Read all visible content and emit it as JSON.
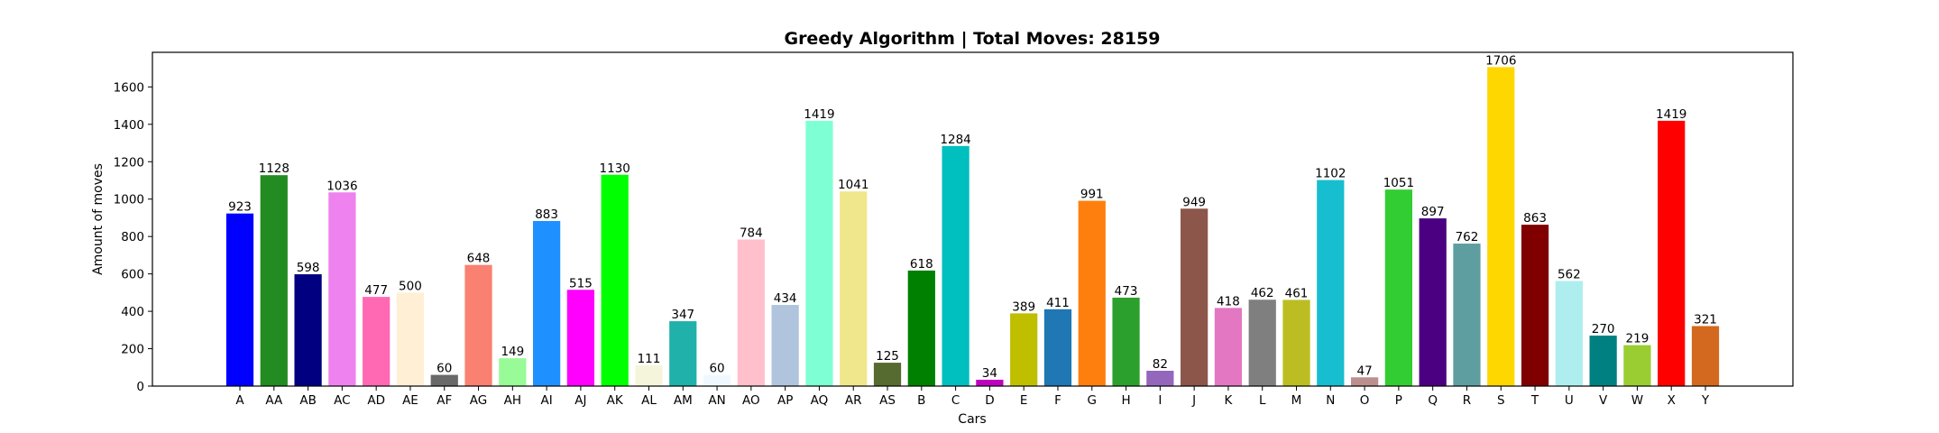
{
  "chart_data": {
    "type": "bar",
    "title": "Greedy Algorithm | Total Moves: 28159",
    "xlabel": "Cars",
    "ylabel": "Amount of moves",
    "ylim": [
      0,
      1785
    ],
    "yticks": [
      0,
      200,
      400,
      600,
      800,
      1000,
      1200,
      1400,
      1600
    ],
    "grid": false,
    "legend": "none",
    "categories": [
      "A",
      "AA",
      "AB",
      "AC",
      "AD",
      "AE",
      "AF",
      "AG",
      "AH",
      "AI",
      "AJ",
      "AK",
      "AL",
      "AM",
      "AN",
      "AO",
      "AP",
      "AQ",
      "AR",
      "AS",
      "B",
      "C",
      "D",
      "E",
      "F",
      "G",
      "H",
      "I",
      "J",
      "K",
      "L",
      "M",
      "N",
      "O",
      "P",
      "Q",
      "R",
      "S",
      "T",
      "U",
      "V",
      "W",
      "X",
      "Y"
    ],
    "values": [
      923,
      1128,
      598,
      1036,
      477,
      500,
      60,
      648,
      149,
      883,
      515,
      1130,
      111,
      347,
      60,
      784,
      434,
      1419,
      1041,
      125,
      618,
      1284,
      34,
      389,
      411,
      991,
      473,
      82,
      949,
      418,
      462,
      461,
      1102,
      47,
      1051,
      897,
      762,
      1706,
      863,
      562,
      270,
      219,
      1419,
      321
    ],
    "colors": [
      "#0000ff",
      "#228b22",
      "#000080",
      "#ee82ee",
      "#ff69b4",
      "#ffefd5",
      "#696969",
      "#fa8072",
      "#98fb98",
      "#1e90ff",
      "#ff00ff",
      "#00ff00",
      "#f5f5dc",
      "#20b2aa",
      "#f0f8ff",
      "#ffc0cb",
      "#b0c4de",
      "#7fffd4",
      "#f0e68c",
      "#556b2f",
      "#008000",
      "#00bfbf",
      "#bf00bf",
      "#bfbf00",
      "#1f77b4",
      "#ff7f0e",
      "#2ca02c",
      "#9467bd",
      "#8c564b",
      "#e377c2",
      "#7f7f7f",
      "#bcbd22",
      "#17becf",
      "#bc8f8f",
      "#32cd32",
      "#4b0082",
      "#5f9ea0",
      "#ffd700",
      "#800000",
      "#afeeee",
      "#008080",
      "#9acd32",
      "#ff0000",
      "#d2691e"
    ]
  }
}
